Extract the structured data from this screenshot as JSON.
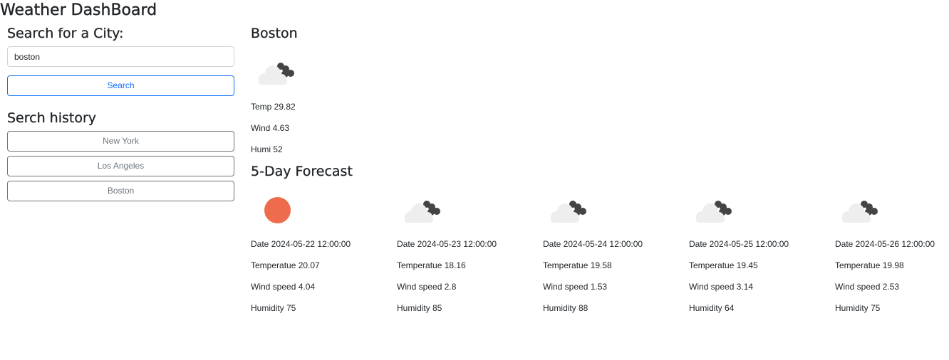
{
  "app": {
    "title": "Weather DashBoard"
  },
  "search": {
    "heading": "Search for a City:",
    "input_value": "boston",
    "button_label": "Search"
  },
  "history": {
    "heading": "Serch history",
    "items": [
      "New York",
      "Los Angeles",
      "Boston"
    ]
  },
  "current": {
    "city": "Boston",
    "icon": "clouds-icon",
    "temp_label": "Temp 29.82",
    "wind_label": "Wind 4.63",
    "humidity_label": "Humi 52"
  },
  "forecast": {
    "heading": "5-Day Forecast",
    "days": [
      {
        "icon": "sun-icon",
        "date": "Date 2024-05-22 12:00:00",
        "temperature": "Temperatue 20.07",
        "wind": "Wind speed 4.04",
        "humidity": "Humidity 75"
      },
      {
        "icon": "clouds-icon",
        "date": "Date 2024-05-23 12:00:00",
        "temperature": "Temperatue 18.16",
        "wind": "Wind speed 2.8",
        "humidity": "Humidity 85"
      },
      {
        "icon": "clouds-icon",
        "date": "Date 2024-05-24 12:00:00",
        "temperature": "Temperatue 19.58",
        "wind": "Wind speed 1.53",
        "humidity": "Humidity 88"
      },
      {
        "icon": "clouds-icon",
        "date": "Date 2024-05-25 12:00:00",
        "temperature": "Temperatue 19.45",
        "wind": "Wind speed 3.14",
        "humidity": "Humidity 64"
      },
      {
        "icon": "clouds-icon",
        "date": "Date 2024-05-26 12:00:00",
        "temperature": "Temperatue 19.98",
        "wind": "Wind speed 2.53",
        "humidity": "Humidity 75"
      }
    ]
  },
  "colors": {
    "primary": "#0d6efd",
    "secondary": "#6c757d",
    "sun": "#ee6c4d",
    "cloud_light": "#eeeeee",
    "cloud_dark": "#444444"
  }
}
